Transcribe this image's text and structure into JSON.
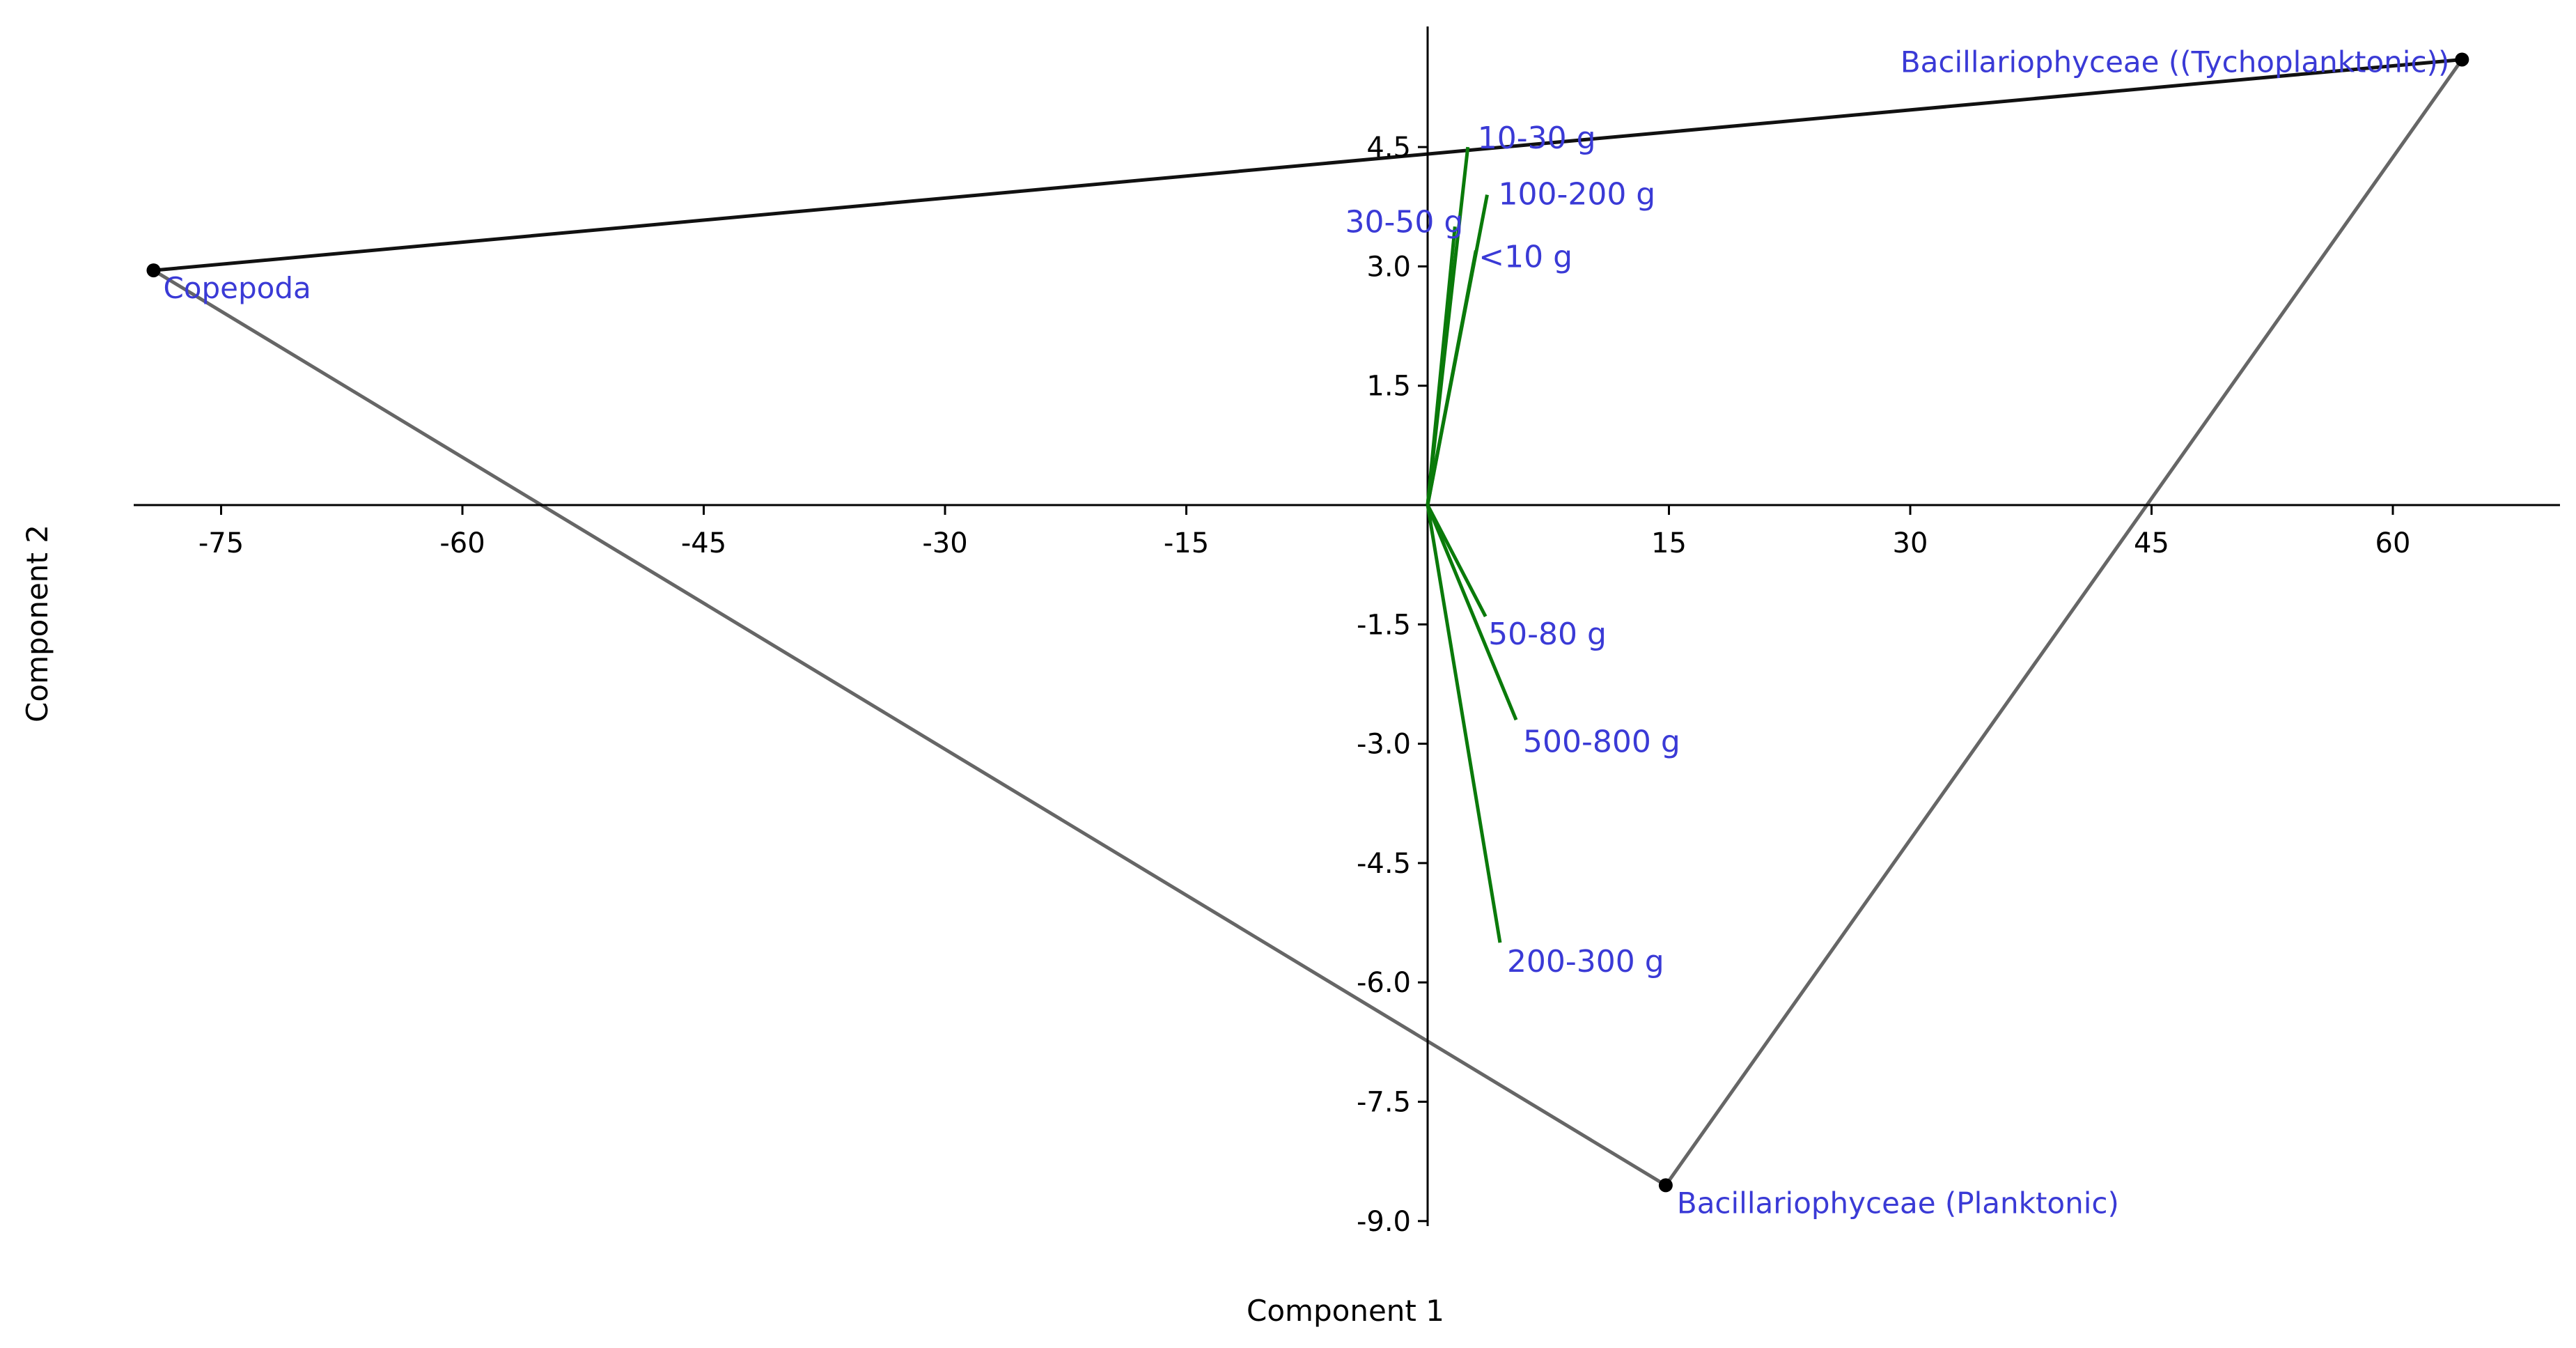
{
  "chart_data": {
    "type": "scatter",
    "title": "",
    "xlabel": "Component 1",
    "ylabel": "Component 2",
    "xlim": [
      -80,
      70
    ],
    "ylim": [
      -9.5,
      6.0
    ],
    "x_ticks": [
      -75,
      -60,
      -45,
      -30,
      -15,
      15,
      30,
      45,
      60
    ],
    "x_tick_labels": [
      "-75",
      "-60",
      "-45",
      "-30",
      "-15",
      "15",
      "30",
      "45",
      "60"
    ],
    "y_ticks": [
      4.5,
      3.0,
      1.5,
      -1.5,
      -3.0,
      -4.5,
      -6.0,
      -7.5,
      -9.0
    ],
    "y_tick_labels": [
      "4.5",
      "3.0",
      "1.5",
      "-1.5",
      "-3.0",
      "-4.5",
      "-6.0",
      "-7.5",
      "-9.0"
    ],
    "grid": false,
    "points": [
      {
        "label": "Copepoda",
        "x": -79.2,
        "y": 2.95
      },
      {
        "label": "Bacillariophyceae ((Tychoplanktonic))",
        "x": 64.3,
        "y": 5.6
      },
      {
        "label": "Bacillariophyceae (Planktonic)",
        "x": 14.8,
        "y": -8.55
      }
    ],
    "hull": [
      {
        "from": 0,
        "to": 1,
        "color": "#111111"
      },
      {
        "from": 0,
        "to": 2,
        "color": "#666666"
      },
      {
        "from": 2,
        "to": 1,
        "color": "#666666"
      }
    ],
    "vectors": [
      {
        "label": "10-30 g",
        "x": 2.5,
        "y": 4.5
      },
      {
        "label": "30-50 g",
        "x": 1.7,
        "y": 3.5
      },
      {
        "label": "100-200 g",
        "x": 3.7,
        "y": 3.9
      },
      {
        "label": "<10 g",
        "x": 3.0,
        "y": 3.2
      },
      {
        "label": "50-80 g",
        "x": 3.6,
        "y": -1.4
      },
      {
        "label": "500-800 g",
        "x": 5.5,
        "y": -2.7
      },
      {
        "label": "200-300 g",
        "x": 4.5,
        "y": -5.5
      }
    ],
    "colors": {
      "vector": "#0a7a0a",
      "label": "#3a3ad6",
      "axis": "#000000"
    }
  }
}
